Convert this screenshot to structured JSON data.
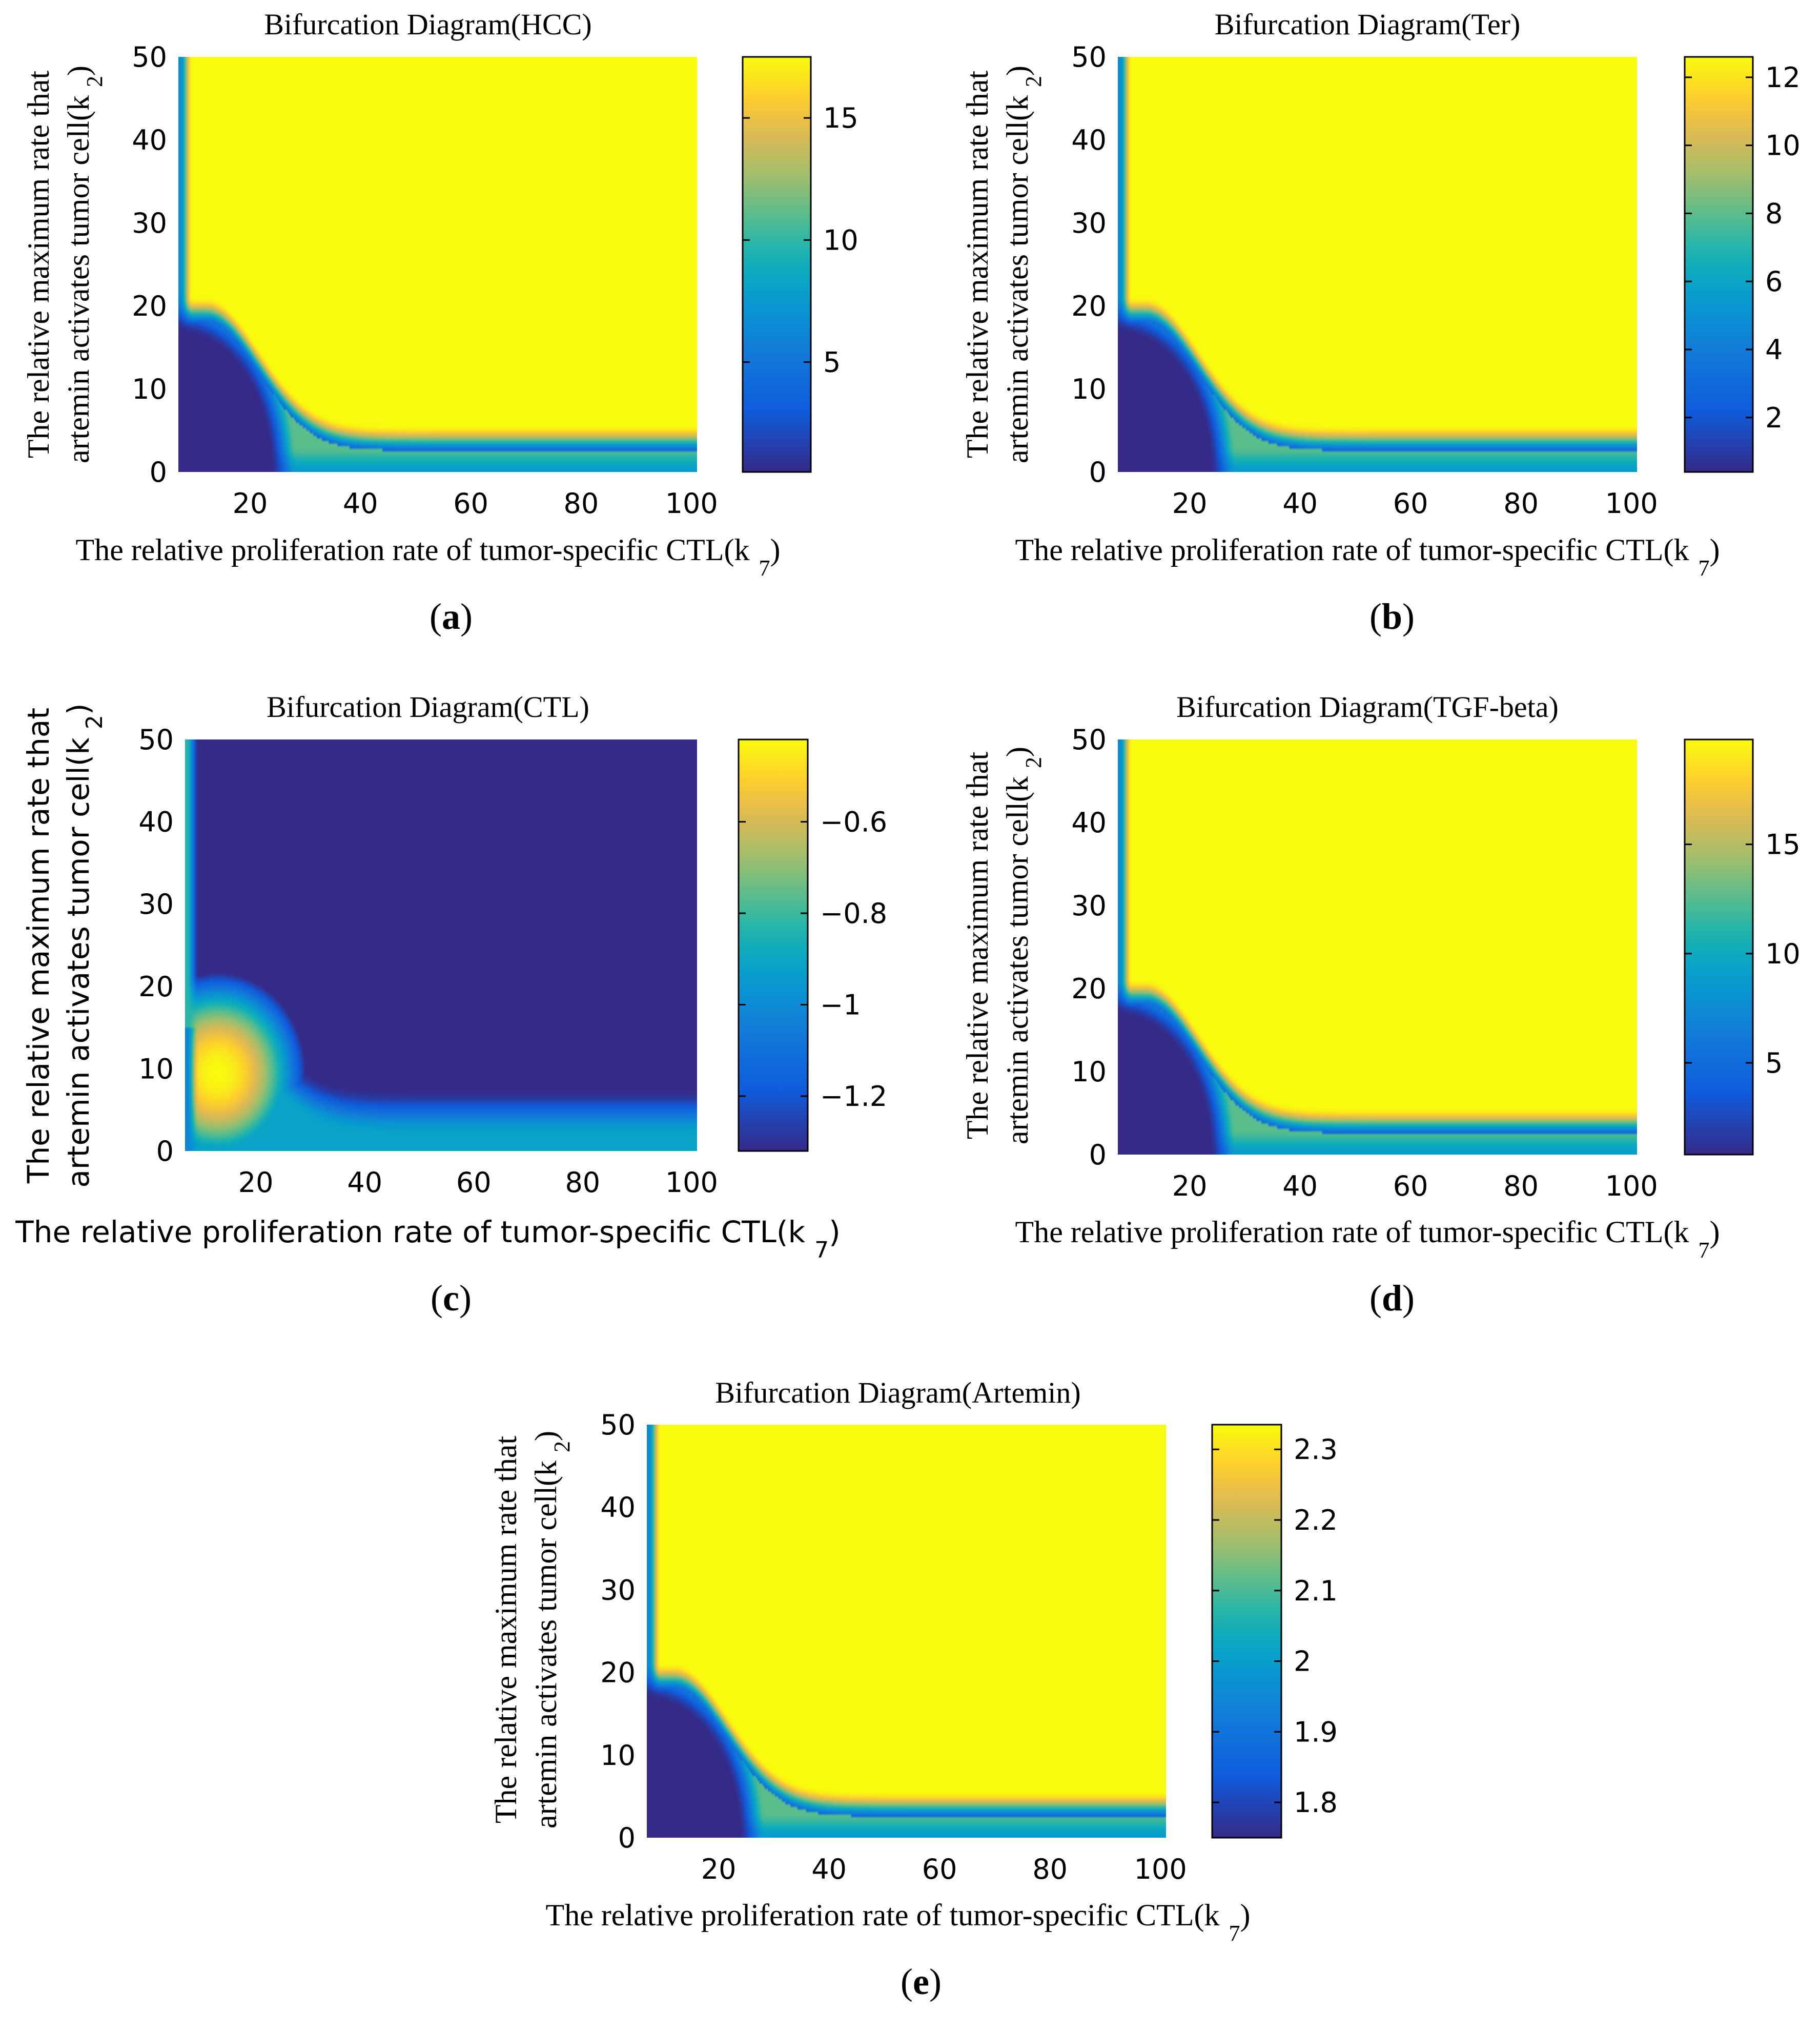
{
  "chart_data": [
    {
      "type": "heatmap",
      "panel": "(a)",
      "caption_letter": "a",
      "title": "Bifurcation Diagram(HCC)",
      "xlabel": "The relative proliferation rate of tumor-specific CTL(k",
      "xlabel_sub": "7",
      "xlabel_close": ")",
      "ylabel_line1": "The relative maximum rate that",
      "ylabel_line2": "artemin activates tumor cell(k",
      "ylabel_sub": "2",
      "ylabel_close": ")",
      "xlim": [
        7,
        101
      ],
      "ylim": [
        0,
        50
      ],
      "xticks": [
        "20",
        "40",
        "60",
        "80",
        "100"
      ],
      "yticks": [
        "0",
        "10",
        "20",
        "30",
        "40",
        "50"
      ],
      "zlim": [
        0.5,
        17.5
      ],
      "colorbar_ticks": [
        "5",
        "10",
        "15"
      ],
      "colorbar_tick_values": [
        5,
        10,
        15
      ],
      "pattern": "low-region-bottom-left"
    },
    {
      "type": "heatmap",
      "panel": "(b)",
      "caption_letter": "b",
      "title": "Bifurcation Diagram(Ter)",
      "xlabel": "The relative proliferation rate of tumor-specific CTL(k",
      "xlabel_sub": "7",
      "xlabel_close": ")",
      "ylabel_line1": "The relative maximum rate that",
      "ylabel_line2": "artemin activates tumor cell(k",
      "ylabel_sub": "2",
      "ylabel_close": ")",
      "xlim": [
        7,
        101
      ],
      "ylim": [
        0,
        50
      ],
      "xticks": [
        "20",
        "40",
        "60",
        "80",
        "100"
      ],
      "yticks": [
        "0",
        "10",
        "20",
        "30",
        "40",
        "50"
      ],
      "zlim": [
        0.4,
        12.6
      ],
      "colorbar_ticks": [
        "2",
        "4",
        "6",
        "8",
        "10",
        "12"
      ],
      "colorbar_tick_values": [
        2,
        4,
        6,
        8,
        10,
        12
      ],
      "pattern": "low-region-bottom-left"
    },
    {
      "type": "heatmap",
      "panel": "(c)",
      "caption_letter": "c",
      "title": "Bifurcation Diagram(CTL)",
      "xlabel": "The relative proliferation rate of tumor-specific CTL(k",
      "xlabel_sub": "7",
      "xlabel_close": ")",
      "ylabel_line1": "The relative maximum rate that",
      "ylabel_line2": "artemin activates tumor cell(k",
      "ylabel_sub": "2",
      "ylabel_close": ")",
      "xlim": [
        7,
        101
      ],
      "ylim": [
        0,
        50
      ],
      "xticks": [
        "20",
        "40",
        "60",
        "80",
        "100"
      ],
      "yticks": [
        "0",
        "10",
        "20",
        "30",
        "40",
        "50"
      ],
      "zlim": [
        -1.32,
        -0.42
      ],
      "colorbar_ticks": [
        "−1.2",
        "−1",
        "−0.8",
        "−0.6"
      ],
      "colorbar_tick_values": [
        -1.2,
        -1.0,
        -0.8,
        -0.6
      ],
      "pattern": "high-region-bottom-left"
    },
    {
      "type": "heatmap",
      "panel": "(d)",
      "caption_letter": "d",
      "title": "Bifurcation Diagram(TGF-beta)",
      "xlabel": "The relative proliferation rate of tumor-specific CTL(k",
      "xlabel_sub": "7",
      "xlabel_close": ")",
      "ylabel_line1": "The relative maximum rate that",
      "ylabel_line2": "artemin activates tumor cell(k",
      "ylabel_sub": "2",
      "ylabel_close": ")",
      "xlim": [
        7,
        101
      ],
      "ylim": [
        0,
        50
      ],
      "xticks": [
        "20",
        "40",
        "60",
        "80",
        "100"
      ],
      "yticks": [
        "0",
        "10",
        "20",
        "30",
        "40",
        "50"
      ],
      "zlim": [
        0.8,
        19.8
      ],
      "colorbar_ticks": [
        "5",
        "10",
        "15"
      ],
      "colorbar_tick_values": [
        5,
        10,
        15
      ],
      "pattern": "low-region-bottom-left"
    },
    {
      "type": "heatmap",
      "panel": "(e)",
      "caption_letter": "e",
      "title": "Bifurcation Diagram(Artemin)",
      "xlabel": "The relative proliferation rate of tumor-specific CTL(k",
      "xlabel_sub": "7",
      "xlabel_close": ")",
      "ylabel_line1": "The relative maximum rate that",
      "ylabel_line2": "artemin activates tumor cell(k",
      "ylabel_sub": "2",
      "ylabel_close": ")",
      "xlim": [
        7,
        101
      ],
      "ylim": [
        0,
        50
      ],
      "xticks": [
        "20",
        "40",
        "60",
        "80",
        "100"
      ],
      "yticks": [
        "0",
        "10",
        "20",
        "30",
        "40",
        "50"
      ],
      "zlim": [
        1.75,
        2.335
      ],
      "colorbar_ticks": [
        "1.8",
        "1.9",
        "2",
        "2.1",
        "2.2",
        "2.3"
      ],
      "colorbar_tick_values": [
        1.8,
        1.9,
        2.0,
        2.1,
        2.2,
        2.3
      ],
      "pattern": "low-region-bottom-left"
    }
  ],
  "colormap": "parula",
  "colors": {
    "low": "#352a87",
    "mid_blue": "#0f5cdd",
    "cyan": "#0ca7c6",
    "teal": "#2ab494",
    "green": "#a5be6a",
    "orange": "#fbb93a",
    "high": "#f9fb0e"
  }
}
